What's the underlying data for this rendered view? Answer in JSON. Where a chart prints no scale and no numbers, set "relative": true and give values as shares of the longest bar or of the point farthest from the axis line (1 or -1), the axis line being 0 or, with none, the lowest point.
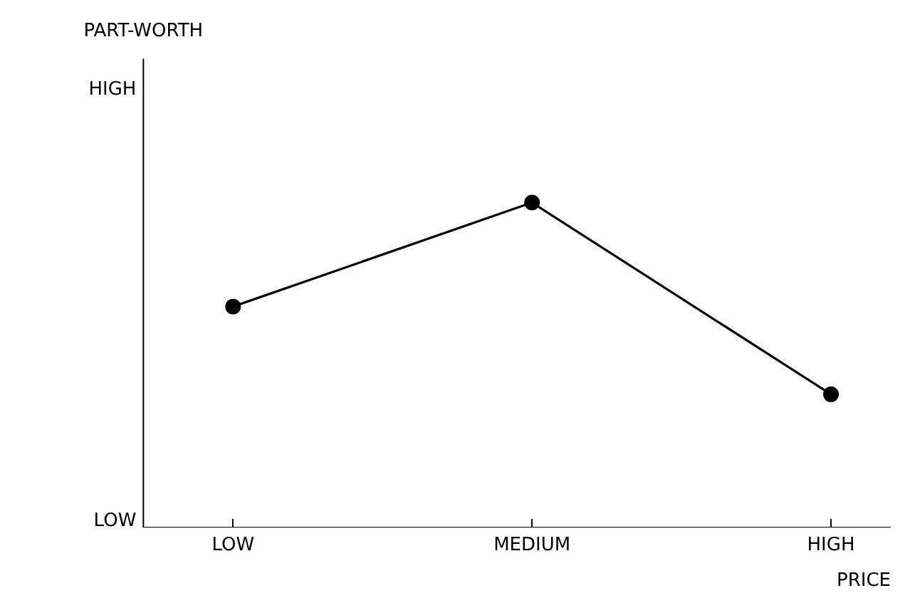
{
  "chart_data": {
    "type": "line",
    "xlabel": "PRICE",
    "categories": [
      "LOW",
      "MEDIUM",
      "HIGH"
    ],
    "series": [
      {
        "color": "#000000",
        "values": [
          0.68,
          1,
          0.41
        ]
      }
    ],
    "relative": true,
    "annotations": [
      "PART-WORTH",
      "HIGH",
      "LOW"
    ],
    "marker": "circle",
    "line_style": "solid"
  }
}
